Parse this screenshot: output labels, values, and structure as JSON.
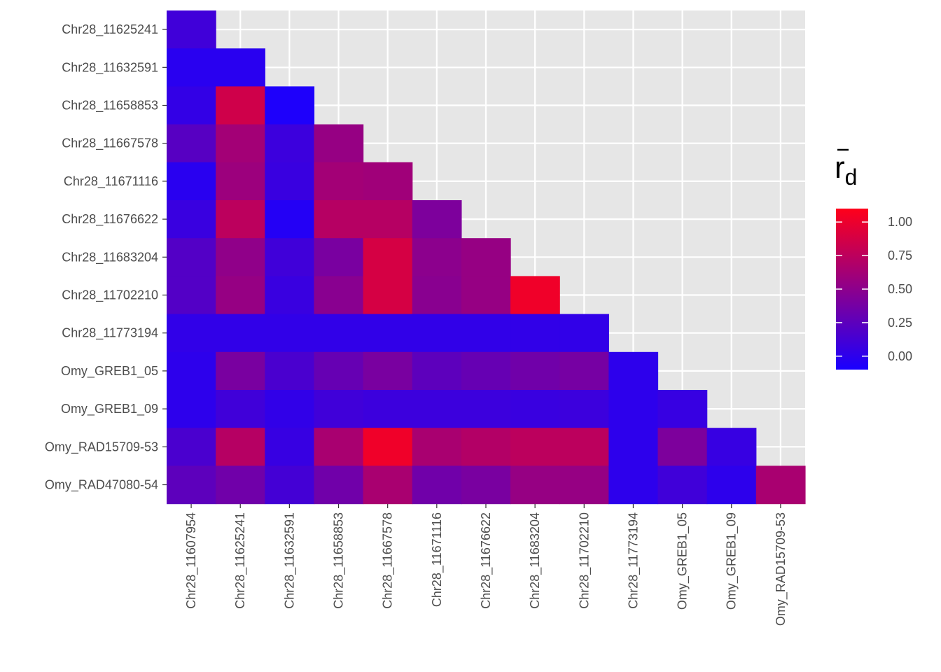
{
  "chart_data": {
    "type": "heatmap",
    "x_categories": [
      "Chr28_11607954",
      "Chr28_11625241",
      "Chr28_11632591",
      "Chr28_11658853",
      "Chr28_11667578",
      "Chr28_11671116",
      "Chr28_11676622",
      "Chr28_11683204",
      "Chr28_11702210",
      "Chr28_11773194",
      "Omy_GREB1_05",
      "Omy_GREB1_09",
      "Omy_RAD15709-53"
    ],
    "y_categories": [
      "Chr28_11625241",
      "Chr28_11632591",
      "Chr28_11658853",
      "Chr28_11667578",
      "Chr28_11671116",
      "Chr28_11676622",
      "Chr28_11683204",
      "Chr28_11702210",
      "Chr28_11773194",
      "Omy_GREB1_05",
      "Omy_GREB1_09",
      "Omy_RAD15709-53",
      "Omy_RAD47080-54"
    ],
    "values": [
      [
        0.1
      ],
      [
        -0.02,
        -0.02
      ],
      [
        0.03,
        0.85,
        -0.08
      ],
      [
        0.22,
        0.62,
        0.08,
        0.55
      ],
      [
        -0.02,
        0.58,
        0.06,
        0.62,
        0.6
      ],
      [
        0.06,
        0.75,
        -0.05,
        0.72,
        0.72,
        0.42
      ],
      [
        0.2,
        0.52,
        0.1,
        0.4,
        0.88,
        0.5,
        0.55
      ],
      [
        0.2,
        0.55,
        0.06,
        0.48,
        0.88,
        0.48,
        0.55,
        1.02
      ],
      [
        0.02,
        0.02,
        0.02,
        0.02,
        0.02,
        0.02,
        0.02,
        0.02,
        0.02
      ],
      [
        0.0,
        0.4,
        0.15,
        0.3,
        0.4,
        0.25,
        0.3,
        0.35,
        0.38,
        0.0
      ],
      [
        0.0,
        0.1,
        0.02,
        0.1,
        0.08,
        0.08,
        0.08,
        0.06,
        0.08,
        0.0,
        0.05
      ],
      [
        0.15,
        0.72,
        0.05,
        0.65,
        1.02,
        0.65,
        0.7,
        0.75,
        0.75,
        0.0,
        0.42,
        0.05
      ],
      [
        0.25,
        0.35,
        0.12,
        0.35,
        0.65,
        0.35,
        0.4,
        0.55,
        0.55,
        0.0,
        0.1,
        0.0,
        0.65
      ]
    ],
    "colorscale": {
      "low": "#1a00ff",
      "high": "#ff001a",
      "min": -0.1,
      "max": 1.1
    },
    "legend": {
      "title_main": "r",
      "title_sub": "d",
      "ticks": [
        1.0,
        0.75,
        0.5,
        0.25,
        0.0
      ],
      "tick_labels": [
        "1.00",
        "0.75",
        "0.50",
        "0.25",
        "0.00"
      ],
      "placement": "right"
    },
    "panel_background": "#e6e6e6",
    "grid": true,
    "title": "",
    "xlabel": "",
    "ylabel": ""
  }
}
